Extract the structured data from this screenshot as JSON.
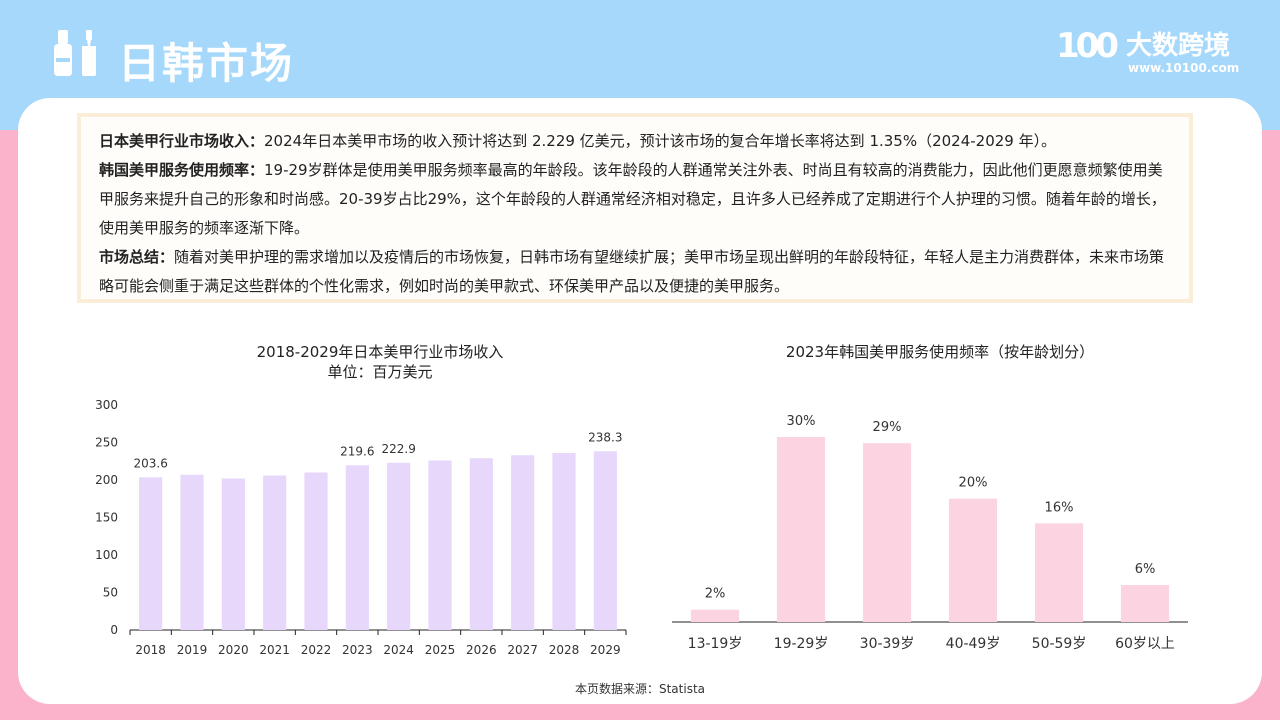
{
  "header": {
    "title": "日韩市场"
  },
  "logo": {
    "mark": "100",
    "name": "大数跨境",
    "url": "www.10100.com"
  },
  "info": {
    "p1_label": "日本美甲行业市场收入：",
    "p1_text": "2024年日本美甲市场的收入预计将达到 2.229 亿美元，预计该市场的复合年增长率将达到 1.35%（2024-2029 年）。",
    "p2_label": "韩国美甲服务使用频率：",
    "p2_text": "19-29岁群体是使用美甲服务频率最高的年龄段。该年龄段的人群通常关注外表、时尚且有较高的消费能力，因此他们更愿意频繁使用美甲服务来提升自己的形象和时尚感。20-39岁占比29%，这个年龄段的人群通常经济相对稳定，且许多人已经养成了定期进行个人护理的习惯。随着年龄的增长，使用美甲服务的频率逐渐下降。",
    "p3_label": "市场总结：",
    "p3_text": "随着对美甲护理的需求增加以及疫情后的市场恢复，日韩市场有望继续扩展；美甲市场呈现出鲜明的年龄段特征，年轻人是主力消费群体，未来市场策略可能会侧重于满足这些群体的个性化需求，例如时尚的美甲款式、环保美甲产品以及便捷的美甲服务。"
  },
  "source": "本页数据来源：Statista",
  "chart_data": [
    {
      "type": "bar",
      "title": "2018-2029年日本美甲行业市场收入",
      "subtitle": "单位：百万美元",
      "categories": [
        "2018",
        "2019",
        "2020",
        "2021",
        "2022",
        "2023",
        "2024",
        "2025",
        "2026",
        "2027",
        "2028",
        "2029"
      ],
      "values": [
        203.6,
        207,
        202,
        206,
        210,
        219.6,
        222.9,
        226,
        229,
        233,
        236,
        238.3
      ],
      "data_labels": {
        "2018": "203.6",
        "2023": "219.6",
        "2024": "222.9",
        "2029": "238.3"
      },
      "yticks": [
        0,
        50,
        100,
        150,
        200,
        250,
        300
      ],
      "ylim": [
        0,
        300
      ],
      "color": "#e6d7fb",
      "grid": false
    },
    {
      "type": "bar",
      "title": "2023年韩国美甲服务使用频率（按年龄划分）",
      "categories": [
        "13-19岁",
        "19-29岁",
        "30-39岁",
        "40-49岁",
        "50-59岁",
        "60岁以上"
      ],
      "values": [
        2,
        30,
        29,
        20,
        16,
        6
      ],
      "value_labels": [
        "2%",
        "30%",
        "29%",
        "20%",
        "16%",
        "6%"
      ],
      "ylim": [
        0,
        30
      ],
      "color": "#fcd3e1",
      "grid": false
    }
  ]
}
